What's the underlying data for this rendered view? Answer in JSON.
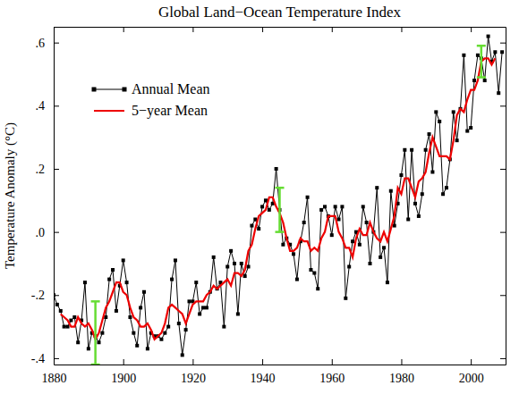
{
  "chart_data": {
    "type": "line",
    "title": "Global Land−Ocean Temperature Index",
    "y_label": "Temperature Anomaly (°C)",
    "x": [
      1880,
      1881,
      1882,
      1883,
      1884,
      1885,
      1886,
      1887,
      1888,
      1889,
      1890,
      1891,
      1892,
      1893,
      1894,
      1895,
      1896,
      1897,
      1898,
      1899,
      1900,
      1901,
      1902,
      1903,
      1904,
      1905,
      1906,
      1907,
      1908,
      1909,
      1910,
      1911,
      1912,
      1913,
      1914,
      1915,
      1916,
      1917,
      1918,
      1919,
      1920,
      1921,
      1922,
      1923,
      1924,
      1925,
      1926,
      1927,
      1928,
      1929,
      1930,
      1931,
      1932,
      1933,
      1934,
      1935,
      1936,
      1937,
      1938,
      1939,
      1940,
      1941,
      1942,
      1943,
      1944,
      1945,
      1946,
      1947,
      1948,
      1949,
      1950,
      1951,
      1952,
      1953,
      1954,
      1955,
      1956,
      1957,
      1958,
      1959,
      1960,
      1961,
      1962,
      1963,
      1964,
      1965,
      1966,
      1967,
      1968,
      1969,
      1970,
      1971,
      1972,
      1973,
      1974,
      1975,
      1976,
      1977,
      1978,
      1979,
      1980,
      1981,
      1982,
      1983,
      1984,
      1985,
      1986,
      1987,
      1988,
      1989,
      1990,
      1991,
      1992,
      1993,
      1994,
      1995,
      1996,
      1997,
      1998,
      1999,
      2000,
      2001,
      2002,
      2003,
      2004,
      2005,
      2006,
      2007,
      2008,
      2009
    ],
    "series": [
      {
        "name": "Annual Mean",
        "color": "#000000",
        "marker": "square",
        "line_style": "solid",
        "values": [
          -0.2,
          -0.23,
          -0.25,
          -0.3,
          -0.3,
          -0.28,
          -0.27,
          -0.35,
          -0.28,
          -0.16,
          -0.37,
          -0.32,
          -0.33,
          -0.35,
          -0.32,
          -0.27,
          -0.15,
          -0.12,
          -0.25,
          -0.17,
          -0.09,
          -0.16,
          -0.27,
          -0.32,
          -0.36,
          -0.24,
          -0.19,
          -0.37,
          -0.32,
          -0.33,
          -0.33,
          -0.34,
          -0.32,
          -0.3,
          -0.15,
          -0.09,
          -0.29,
          -0.39,
          -0.31,
          -0.22,
          -0.22,
          -0.16,
          -0.26,
          -0.24,
          -0.24,
          -0.19,
          -0.08,
          -0.18,
          -0.16,
          -0.3,
          -0.11,
          -0.06,
          -0.1,
          -0.26,
          -0.1,
          -0.14,
          -0.11,
          0.02,
          0.04,
          0.01,
          0.08,
          0.1,
          0.07,
          0.09,
          0.2,
          0.07,
          -0.04,
          -0.02,
          -0.04,
          -0.07,
          -0.15,
          -0.03,
          0.03,
          0.11,
          -0.12,
          -0.13,
          -0.18,
          0.07,
          0.08,
          0.05,
          -0.01,
          0.08,
          0.04,
          0.08,
          -0.21,
          -0.11,
          -0.03,
          0.0,
          -0.04,
          0.08,
          0.03,
          -0.1,
          0.0,
          0.14,
          -0.08,
          -0.05,
          -0.16,
          0.13,
          0.02,
          0.09,
          0.18,
          0.26,
          0.04,
          0.26,
          0.09,
          0.05,
          0.12,
          0.26,
          0.31,
          0.19,
          0.38,
          0.35,
          0.12,
          0.14,
          0.23,
          0.38,
          0.29,
          0.39,
          0.56,
          0.32,
          0.33,
          0.48,
          0.56,
          0.55,
          0.48,
          0.62,
          0.54,
          0.57,
          0.44,
          0.57
        ]
      },
      {
        "name": "5−year Mean",
        "color": "#ee0000",
        "marker": "none",
        "line_style": "solid",
        "values": [
          null,
          null,
          -0.26,
          -0.27,
          -0.28,
          -0.3,
          -0.3,
          -0.27,
          -0.29,
          -0.3,
          -0.29,
          -0.31,
          -0.34,
          -0.32,
          -0.28,
          -0.24,
          -0.22,
          -0.19,
          -0.16,
          -0.16,
          -0.19,
          -0.2,
          -0.24,
          -0.27,
          -0.28,
          -0.3,
          -0.3,
          -0.29,
          -0.31,
          -0.34,
          -0.33,
          -0.32,
          -0.29,
          -0.24,
          -0.23,
          -0.24,
          -0.25,
          -0.26,
          -0.29,
          -0.26,
          -0.23,
          -0.22,
          -0.22,
          -0.22,
          -0.2,
          -0.19,
          -0.17,
          -0.18,
          -0.17,
          -0.16,
          -0.15,
          -0.17,
          -0.13,
          -0.13,
          -0.14,
          -0.12,
          -0.06,
          -0.04,
          0.01,
          0.05,
          0.06,
          0.07,
          0.11,
          0.11,
          0.08,
          0.06,
          0.03,
          -0.02,
          -0.06,
          -0.06,
          -0.05,
          -0.02,
          -0.03,
          -0.03,
          -0.06,
          -0.05,
          -0.06,
          -0.02,
          0.0,
          0.05,
          0.05,
          0.05,
          0.0,
          -0.02,
          -0.05,
          -0.05,
          -0.08,
          -0.02,
          0.01,
          -0.01,
          -0.01,
          0.03,
          0.0,
          -0.02,
          -0.03,
          0.0,
          -0.03,
          0.01,
          0.05,
          0.14,
          0.12,
          0.17,
          0.17,
          0.14,
          0.11,
          0.16,
          0.17,
          0.19,
          0.25,
          0.3,
          0.27,
          0.24,
          0.24,
          0.24,
          0.23,
          0.29,
          0.37,
          0.39,
          0.38,
          0.42,
          0.45,
          0.45,
          0.48,
          0.54,
          0.55,
          0.55,
          0.53,
          0.55,
          null,
          null
        ]
      }
    ],
    "error_bars": {
      "color": "#66dd33",
      "x": [
        1892,
        1945,
        2003
      ],
      "values": [
        -0.32,
        0.07,
        0.54
      ],
      "errors": [
        0.1,
        0.07,
        0.05
      ]
    },
    "xlim": [
      1880,
      2010
    ],
    "xticks": [
      1880,
      1900,
      1920,
      1940,
      1960,
      1980,
      2000
    ],
    "ylim": [
      -0.42,
      0.65
    ],
    "yticks": [
      {
        "value": -0.4,
        "label": "-.4"
      },
      {
        "value": -0.2,
        "label": "-.2"
      },
      {
        "value": 0,
        "label": ".0"
      },
      {
        "value": 0.2,
        "label": ".2"
      },
      {
        "value": 0.4,
        "label": ".4"
      },
      {
        "value": 0.6,
        "label": ".6"
      }
    ],
    "grid": false,
    "legend": "upper left"
  }
}
